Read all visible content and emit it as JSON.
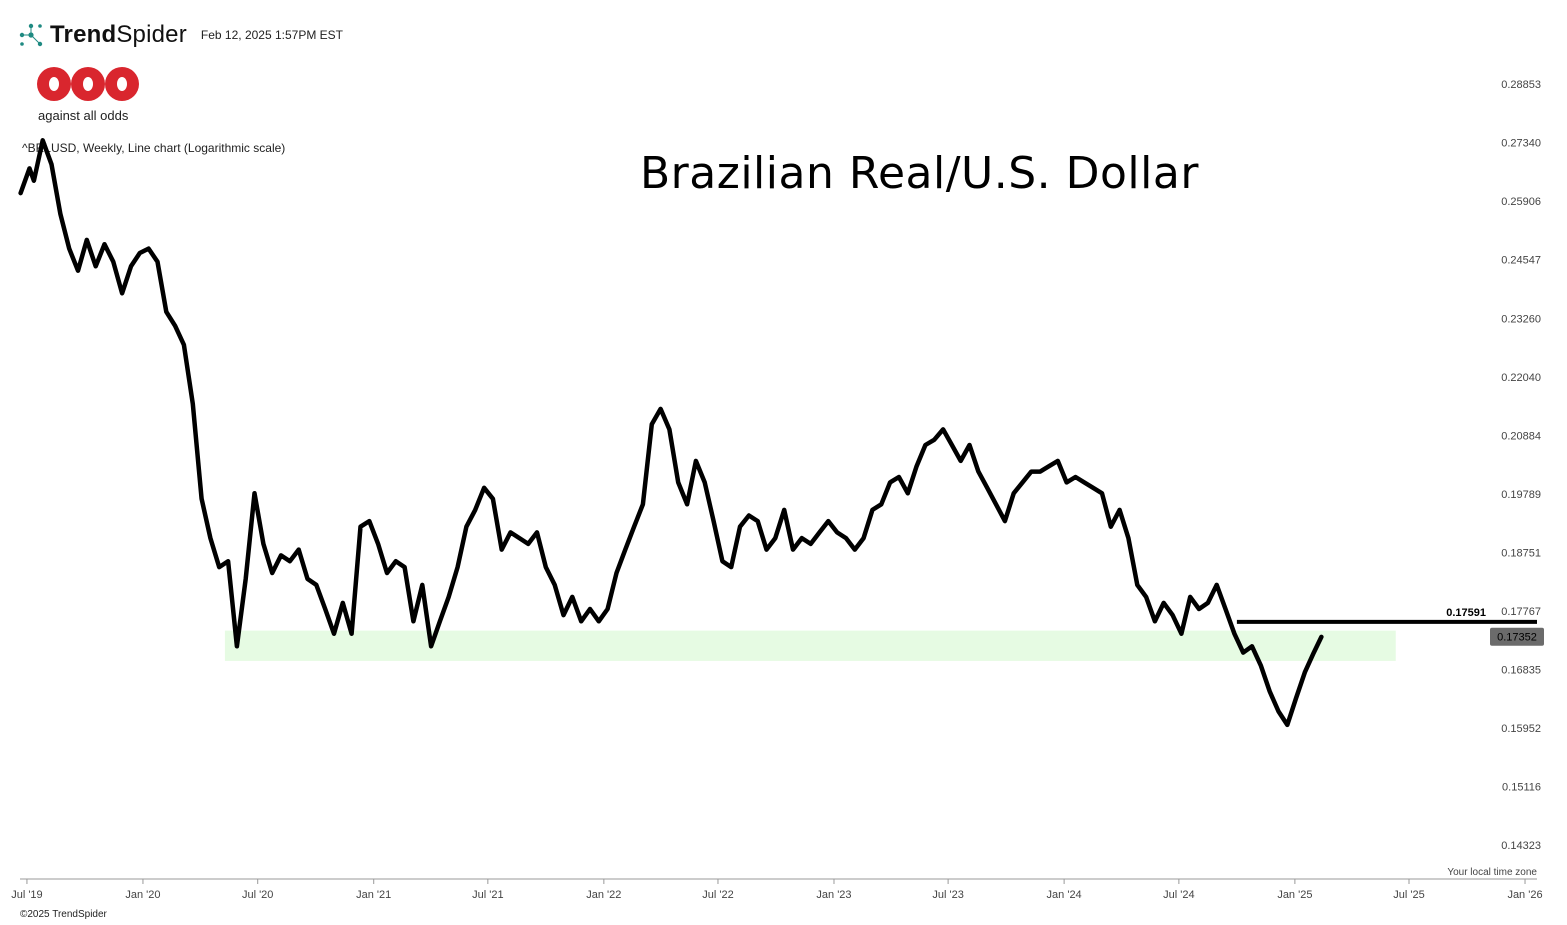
{
  "header": {
    "brand_bold": "Trend",
    "brand_light": "Spider",
    "timestamp": "Feb 12, 2025 1:57PM EST"
  },
  "logo": {
    "text": "against all odds",
    "color": "#d9262e"
  },
  "symbol_line": "^BRLUSD, Weekly, Line chart (Logarithmic scale)",
  "footer": {
    "copyright": "©2025 TrendSpider",
    "timezone_note": "Your local time zone"
  },
  "chart_data": {
    "type": "line",
    "title": "Brazilian Real/U.S. Dollar",
    "scale": "log",
    "ylim": [
      0.14,
      0.295
    ],
    "xlim": [
      "2019-06-20",
      "2026-01-20"
    ],
    "y_ticks": [
      "0.28853",
      "0.27340",
      "0.25906",
      "0.24547",
      "0.23260",
      "0.22040",
      "0.20884",
      "0.19789",
      "0.18751",
      "0.17767",
      "0.16835",
      "0.15952",
      "0.15116",
      "0.14323"
    ],
    "x_ticks": [
      "Jul '19",
      "Jan '20",
      "Jul '20",
      "Jan '21",
      "Jul '21",
      "Jan '22",
      "Jul '22",
      "Jan '23",
      "Jul '23",
      "Jan '24",
      "Jul '24",
      "Jan '25",
      "Jul '25",
      "Jan '26"
    ],
    "x_tick_dates": [
      "2019-07-01",
      "2020-01-01",
      "2020-07-01",
      "2021-01-01",
      "2021-07-01",
      "2022-01-01",
      "2022-07-01",
      "2023-01-01",
      "2023-07-01",
      "2024-01-01",
      "2024-07-01",
      "2025-01-01",
      "2025-07-01",
      "2026-01-01"
    ],
    "series": [
      {
        "color": "#000000",
        "x": [
          "2019-06-21",
          "2019-07-05",
          "2019-07-12",
          "2019-07-26",
          "2019-08-09",
          "2019-08-23",
          "2019-09-06",
          "2019-09-20",
          "2019-10-04",
          "2019-10-18",
          "2019-11-01",
          "2019-11-15",
          "2019-11-29",
          "2019-12-13",
          "2019-12-27",
          "2020-01-10",
          "2020-01-24",
          "2020-02-07",
          "2020-02-21",
          "2020-03-06",
          "2020-03-20",
          "2020-04-03",
          "2020-04-17",
          "2020-05-01",
          "2020-05-15",
          "2020-05-29",
          "2020-06-12",
          "2020-06-26",
          "2020-07-10",
          "2020-07-24",
          "2020-08-07",
          "2020-08-21",
          "2020-09-04",
          "2020-09-18",
          "2020-10-02",
          "2020-10-16",
          "2020-10-30",
          "2020-11-13",
          "2020-11-27",
          "2020-12-11",
          "2020-12-25",
          "2021-01-08",
          "2021-01-22",
          "2021-02-05",
          "2021-02-19",
          "2021-03-05",
          "2021-03-19",
          "2021-04-02",
          "2021-04-16",
          "2021-04-30",
          "2021-05-14",
          "2021-05-28",
          "2021-06-11",
          "2021-06-25",
          "2021-07-09",
          "2021-07-23",
          "2021-08-06",
          "2021-08-20",
          "2021-09-03",
          "2021-09-17",
          "2021-10-01",
          "2021-10-15",
          "2021-10-29",
          "2021-11-12",
          "2021-11-26",
          "2021-12-10",
          "2021-12-24",
          "2022-01-07",
          "2022-01-21",
          "2022-02-04",
          "2022-02-18",
          "2022-03-04",
          "2022-03-18",
          "2022-04-01",
          "2022-04-15",
          "2022-04-29",
          "2022-05-13",
          "2022-05-27",
          "2022-06-10",
          "2022-06-24",
          "2022-07-08",
          "2022-07-22",
          "2022-08-05",
          "2022-08-19",
          "2022-09-02",
          "2022-09-16",
          "2022-09-30",
          "2022-10-14",
          "2022-10-28",
          "2022-11-11",
          "2022-11-25",
          "2022-12-09",
          "2022-12-23",
          "2023-01-06",
          "2023-01-20",
          "2023-02-03",
          "2023-02-17",
          "2023-03-03",
          "2023-03-17",
          "2023-03-31",
          "2023-04-14",
          "2023-04-28",
          "2023-05-12",
          "2023-05-26",
          "2023-06-09",
          "2023-06-23",
          "2023-07-07",
          "2023-07-21",
          "2023-08-04",
          "2023-08-18",
          "2023-09-01",
          "2023-09-15",
          "2023-09-29",
          "2023-10-13",
          "2023-10-27",
          "2023-11-10",
          "2023-11-24",
          "2023-12-08",
          "2023-12-22",
          "2024-01-05",
          "2024-01-19",
          "2024-02-02",
          "2024-02-16",
          "2024-03-01",
          "2024-03-15",
          "2024-03-29",
          "2024-04-12",
          "2024-04-26",
          "2024-05-10",
          "2024-05-24",
          "2024-06-07",
          "2024-06-21",
          "2024-07-05",
          "2024-07-19",
          "2024-08-02",
          "2024-08-16",
          "2024-08-30",
          "2024-09-13",
          "2024-09-27",
          "2024-10-11",
          "2024-10-25",
          "2024-11-08",
          "2024-11-22",
          "2024-12-06",
          "2024-12-20",
          "2025-01-03",
          "2025-01-17",
          "2025-01-31",
          "2025-02-12"
        ],
        "y": [
          0.261,
          0.267,
          0.264,
          0.274,
          0.268,
          0.256,
          0.248,
          0.243,
          0.25,
          0.244,
          0.249,
          0.245,
          0.238,
          0.244,
          0.247,
          0.248,
          0.245,
          0.234,
          0.231,
          0.227,
          0.215,
          0.197,
          0.19,
          0.185,
          0.186,
          0.172,
          0.183,
          0.198,
          0.189,
          0.184,
          0.187,
          0.186,
          0.188,
          0.183,
          0.182,
          0.178,
          0.174,
          0.179,
          0.174,
          0.192,
          0.193,
          0.189,
          0.184,
          0.186,
          0.185,
          0.176,
          0.182,
          0.172,
          0.176,
          0.18,
          0.185,
          0.192,
          0.195,
          0.199,
          0.197,
          0.188,
          0.191,
          0.19,
          0.189,
          0.191,
          0.185,
          0.182,
          0.177,
          0.18,
          0.176,
          0.178,
          0.176,
          0.178,
          0.184,
          0.188,
          0.192,
          0.196,
          0.211,
          0.214,
          0.21,
          0.2,
          0.196,
          0.204,
          0.2,
          0.193,
          0.186,
          0.185,
          0.192,
          0.194,
          0.193,
          0.188,
          0.19,
          0.195,
          0.188,
          0.19,
          0.189,
          0.191,
          0.193,
          0.191,
          0.19,
          0.188,
          0.19,
          0.195,
          0.196,
          0.2,
          0.201,
          0.198,
          0.203,
          0.207,
          0.208,
          0.21,
          0.207,
          0.204,
          0.207,
          0.202,
          0.199,
          0.196,
          0.193,
          0.198,
          0.2,
          0.202,
          0.202,
          0.203,
          0.204,
          0.2,
          0.201,
          0.2,
          0.199,
          0.198,
          0.192,
          0.195,
          0.19,
          0.182,
          0.18,
          0.176,
          0.179,
          0.177,
          0.174,
          0.18,
          0.178,
          0.179,
          0.182,
          0.178,
          0.174,
          0.171,
          0.172,
          0.169,
          0.165,
          0.162,
          0.16,
          0.164,
          0.168,
          0.171,
          0.1735
        ]
      }
    ],
    "resistance_value": 0.17591,
    "resistance_label": "0.17591",
    "resistance_start": "2024-10-01",
    "support_zone": {
      "low": 0.1697,
      "high": 0.1745,
      "start": "2020-05-10",
      "end": "2025-06-10",
      "color": "#e6fbe3"
    },
    "last_value": 0.17352,
    "last_label": "0.17352"
  }
}
